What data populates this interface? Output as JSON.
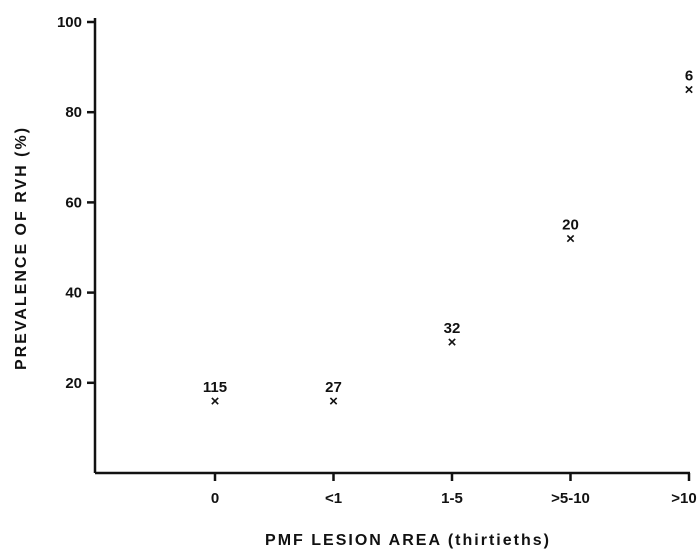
{
  "chart_data": {
    "type": "scatter",
    "title": "",
    "xlabel": "PMF LESION AREA (thirtieths)",
    "ylabel": "PREVALENCE OF RVH (%)",
    "categories": [
      "0",
      "<1",
      "1-5",
      ">5-10",
      ">10"
    ],
    "y_ticks": [
      20,
      40,
      60,
      80,
      100
    ],
    "ylim": [
      0,
      100
    ],
    "grid": false,
    "legend": "none",
    "marker": "x",
    "points": [
      {
        "x": "0",
        "y": 16,
        "n": "115"
      },
      {
        "x": "<1",
        "y": 16,
        "n": "27"
      },
      {
        "x": "1-5",
        "y": 29,
        "n": "32"
      },
      {
        "x": ">5-10",
        "y": 52,
        "n": "20"
      },
      {
        "x": ">10",
        "y": 85,
        "n": "6"
      }
    ]
  }
}
